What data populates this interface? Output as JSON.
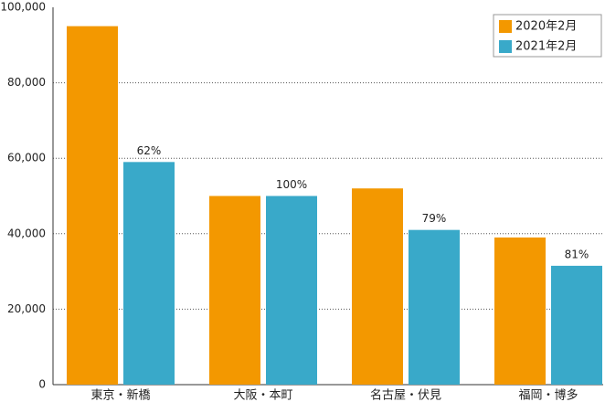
{
  "chart_data": {
    "type": "bar",
    "categories": [
      "東京・新橋",
      "大阪・本町",
      "名古屋・伏見",
      "福岡・博多"
    ],
    "series": [
      {
        "name": "2020年2月",
        "color": "#f39800",
        "values": [
          95000,
          50000,
          52000,
          39000
        ]
      },
      {
        "name": "2021年2月",
        "color": "#39a9c9",
        "values": [
          59000,
          50000,
          41000,
          31500
        ]
      }
    ],
    "change_labels": [
      "62%",
      "100%",
      "79%",
      "81%"
    ],
    "ylim": [
      0,
      100000
    ],
    "yticks": [
      0,
      {
        "value": 20000,
        "label": "20,000"
      },
      {
        "value": 40000,
        "label": "40,000"
      },
      {
        "value": 60000,
        "label": "60,000"
      },
      {
        "value": 80000,
        "label": "80,000"
      },
      {
        "value": 100000,
        "label": "100,000"
      }
    ],
    "grid": true,
    "legend": "top-right"
  }
}
